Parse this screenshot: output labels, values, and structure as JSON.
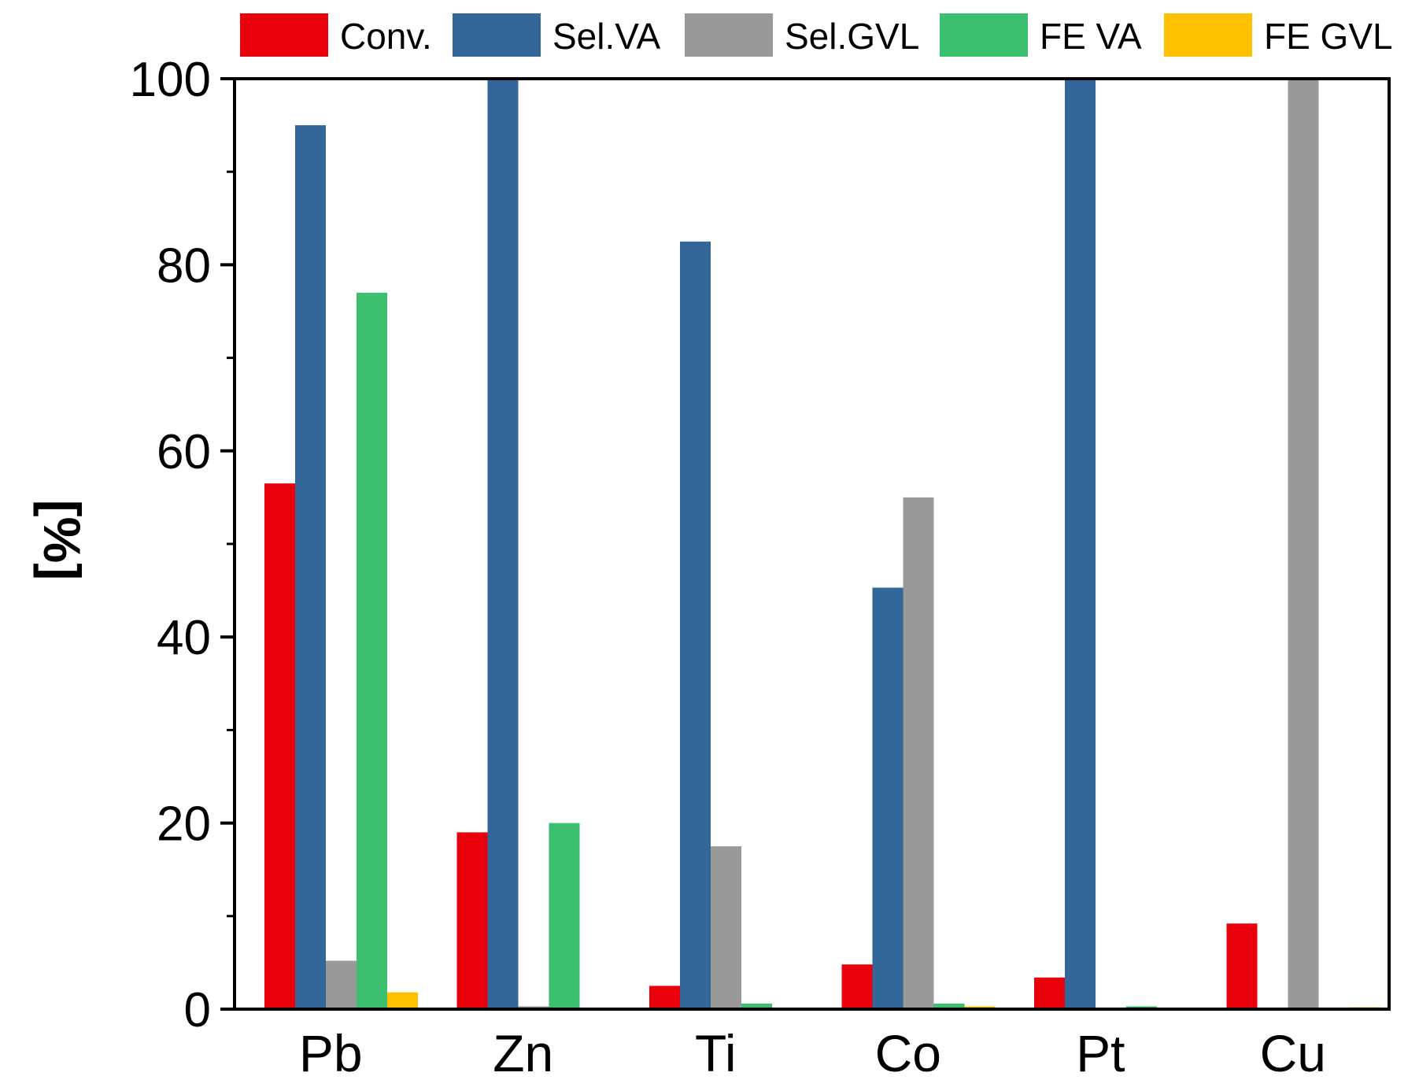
{
  "chart_data": {
    "type": "bar",
    "title": "",
    "xlabel": "",
    "ylabel": "[%]",
    "ylim": [
      0,
      100
    ],
    "yticks": [
      0,
      20,
      40,
      60,
      80,
      100
    ],
    "categories": [
      "Pb",
      "Zn",
      "Ti",
      "Co",
      "Pt",
      "Cu"
    ],
    "legend_position": "top",
    "series": [
      {
        "name": "Conv.",
        "color": "#e8000b",
        "values": [
          56.5,
          19,
          2.5,
          4.8,
          3.4,
          9.2
        ]
      },
      {
        "name": "Sel.VA",
        "color": "#336699",
        "values": [
          95,
          100,
          82.5,
          45.3,
          100,
          0
        ]
      },
      {
        "name": "Sel.GVL",
        "color": "#999999",
        "values": [
          5.2,
          0.3,
          17.5,
          55,
          0,
          100
        ]
      },
      {
        "name": "FE VA",
        "color": "#3cc070",
        "values": [
          77,
          20,
          0.6,
          0.6,
          0.3,
          0
        ]
      },
      {
        "name": "FE GVL",
        "color": "#ffc000",
        "values": [
          1.8,
          0,
          0,
          0.3,
          0,
          0.2
        ]
      }
    ]
  }
}
